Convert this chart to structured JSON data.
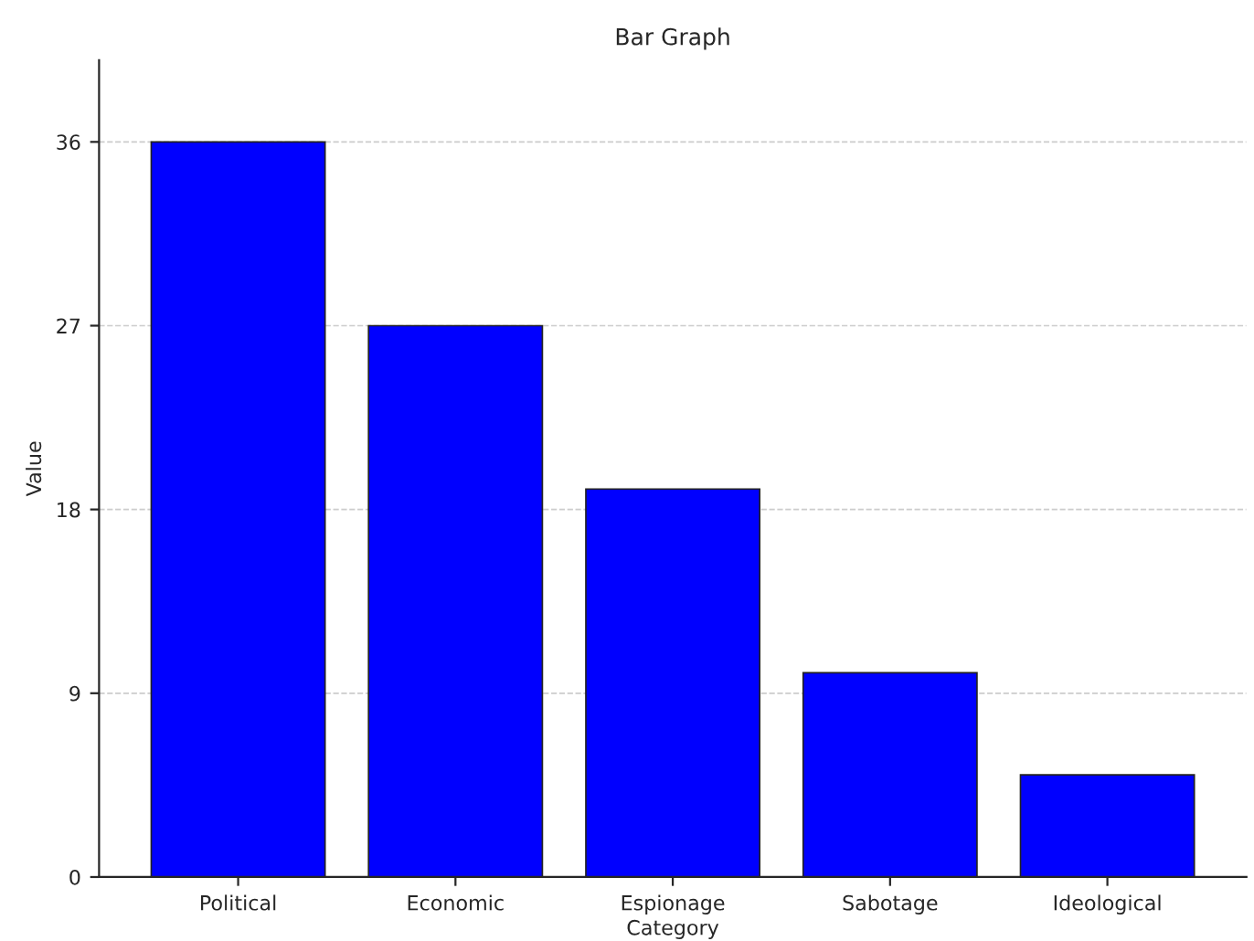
{
  "chart_data": {
    "type": "bar",
    "title": "Bar Graph",
    "xlabel": "Category",
    "ylabel": "Value",
    "categories": [
      "Political",
      "Economic",
      "Espionage",
      "Sabotage",
      "Ideological"
    ],
    "values": [
      36,
      27,
      19,
      10,
      5
    ],
    "color": "#0000ff",
    "ylim": [
      0,
      40
    ],
    "yticks": [
      0,
      9,
      18,
      27,
      36
    ],
    "grid": "y"
  }
}
